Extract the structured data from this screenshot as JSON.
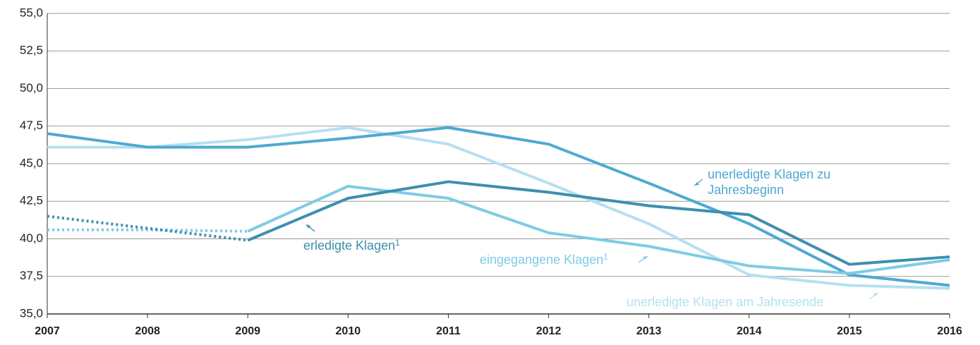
{
  "chart_data": {
    "type": "line",
    "x": [
      2007,
      2008,
      2009,
      2010,
      2011,
      2012,
      2013,
      2014,
      2015,
      2016
    ],
    "xlim": [
      2007,
      2016
    ],
    "xticks": [
      2007,
      2008,
      2009,
      2010,
      2011,
      2012,
      2013,
      2014,
      2015,
      2016
    ],
    "ylim": [
      35,
      55
    ],
    "yticks": [
      {
        "value": 35,
        "label": "35,0"
      },
      {
        "value": 37.5,
        "label": "37,5"
      },
      {
        "value": 40,
        "label": "40,0"
      },
      {
        "value": 42.5,
        "label": "42,5"
      },
      {
        "value": 45,
        "label": "45,0"
      },
      {
        "value": 47.5,
        "label": "47,5"
      },
      {
        "value": 50,
        "label": "50,0"
      },
      {
        "value": 52.5,
        "label": "52,5"
      },
      {
        "value": 55,
        "label": "55,0"
      }
    ],
    "grid": true,
    "series": [
      {
        "name": "unerledigte Klagen am Jahresende",
        "color": "#b5e0f1",
        "values": [
          46.1,
          46.1,
          46.6,
          47.4,
          46.3,
          43.7,
          41.0,
          37.6,
          36.9,
          36.7
        ]
      },
      {
        "name": "unerledigte Klagen zu Jahresbeginn",
        "color": "#4ea9d2",
        "values": [
          47.0,
          46.1,
          46.1,
          46.7,
          47.4,
          46.3,
          43.7,
          41.0,
          37.6,
          36.9
        ]
      },
      {
        "name": "eingegangene Klagen",
        "footnote": "1",
        "color": "#7fcbe4",
        "dotted_until": 2009,
        "values": [
          40.6,
          40.6,
          40.5,
          43.5,
          42.7,
          40.4,
          39.5,
          38.2,
          37.7,
          38.6
        ]
      },
      {
        "name": "erledigte Klagen",
        "footnote": "1",
        "color": "#3d8fae",
        "dotted_until": 2009,
        "values": [
          41.5,
          40.7,
          39.9,
          42.7,
          43.8,
          43.1,
          42.2,
          41.6,
          38.3,
          38.8
        ]
      }
    ]
  }
}
